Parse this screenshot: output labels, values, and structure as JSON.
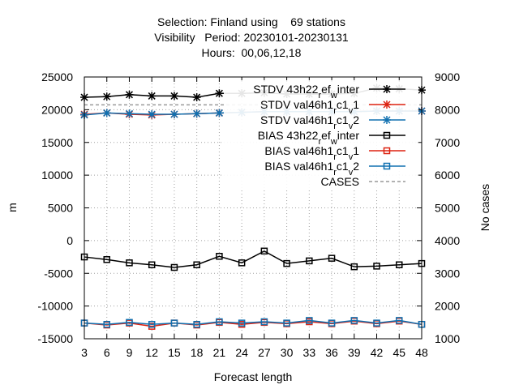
{
  "chart_data": {
    "type": "line",
    "title_lines": [
      "Selection: Finland using    69 stations",
      "Visibility   Period: 20230101-20230131",
      "Hours:  00,06,12,18"
    ],
    "xlabel": "Forecast length",
    "ylabel": "m",
    "y2label": "No cases",
    "x": [
      3,
      6,
      9,
      12,
      15,
      18,
      21,
      24,
      27,
      30,
      33,
      36,
      39,
      42,
      45,
      48
    ],
    "ylim": [
      -15000,
      25000
    ],
    "yticks": [
      25000,
      20000,
      15000,
      10000,
      5000,
      0,
      -5000,
      -10000,
      -15000
    ],
    "y2lim": [
      1000,
      9000
    ],
    "y2ticks": [
      9000,
      8000,
      7000,
      6000,
      5000,
      4000,
      3000,
      2000,
      1000
    ],
    "grid": true,
    "legend_position": "top-right",
    "series": [
      {
        "name": "STDV 43h22_ref_winter",
        "legend_label": "STDV 43h22_ref_winter",
        "color": "#000000",
        "marker": "asterisk",
        "axis": "y",
        "values": [
          21900,
          22000,
          22300,
          22100,
          22100,
          21900,
          22500,
          22500,
          22600,
          22400,
          22400,
          22400,
          22500,
          23300,
          23200,
          23000
        ]
      },
      {
        "name": "STDV val46h1_rc1_v1",
        "legend_label": "STDV val46h1_rc1_v1",
        "color": "#dd2211",
        "marker": "asterisk",
        "axis": "y",
        "values": [
          19300,
          19500,
          19300,
          19200,
          19300,
          19400,
          19500,
          19600,
          19700,
          19700,
          19700,
          19700,
          19700,
          19800,
          19800,
          19800
        ]
      },
      {
        "name": "STDV val46h1_rc1_v2",
        "legend_label": "STDV val46h1_rc1_v2",
        "color": "#1070b0",
        "marker": "asterisk",
        "axis": "y",
        "values": [
          19200,
          19500,
          19400,
          19300,
          19300,
          19400,
          19500,
          19600,
          19700,
          19700,
          19700,
          19700,
          19700,
          19800,
          19800,
          19800
        ]
      },
      {
        "name": "BIAS 43h22_ref_winter",
        "legend_label": "BIAS 43h22_ref_winter",
        "color": "#000000",
        "marker": "square",
        "axis": "y",
        "values": [
          -2500,
          -2900,
          -3400,
          -3700,
          -4100,
          -3700,
          -2400,
          -3400,
          -1600,
          -3500,
          -3100,
          -2700,
          -4000,
          -3900,
          -3700,
          -3500
        ]
      },
      {
        "name": "BIAS val46h1_rc1_v1",
        "legend_label": "BIAS val46h1_rc1_v1",
        "color": "#dd2211",
        "marker": "square",
        "axis": "y",
        "values": [
          -12600,
          -12900,
          -12600,
          -13100,
          -12600,
          -12900,
          -12500,
          -12800,
          -12500,
          -12700,
          -12400,
          -12700,
          -12300,
          -12700,
          -12300,
          -12800
        ]
      },
      {
        "name": "BIAS val46h1_rc1_v2",
        "legend_label": "BIAS val46h1_rc1_v2",
        "color": "#1070b0",
        "marker": "square",
        "axis": "y",
        "values": [
          -12600,
          -12800,
          -12500,
          -12800,
          -12600,
          -12800,
          -12400,
          -12600,
          -12400,
          -12600,
          -12200,
          -12600,
          -12200,
          -12600,
          -12200,
          -12800
        ]
      },
      {
        "name": "CASES",
        "legend_label": "CASES",
        "color": "#999999",
        "marker": "none",
        "dashed": true,
        "axis": "y2",
        "values": [
          8150,
          8150,
          8150,
          8150,
          8150,
          8150,
          8150,
          8150,
          8150,
          8150,
          8150,
          8150,
          8150,
          8150,
          8150,
          8150
        ]
      }
    ]
  }
}
